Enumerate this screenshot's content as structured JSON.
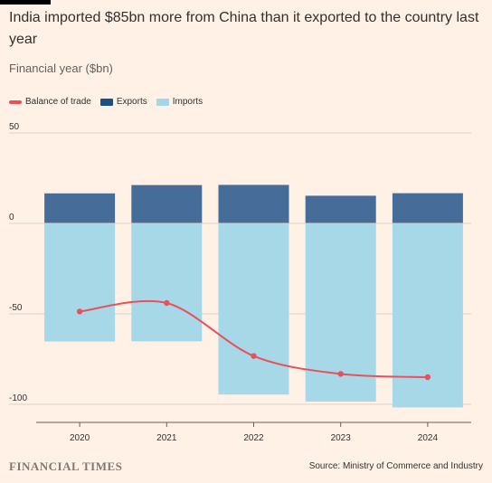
{
  "title": "India imported $85bn more from China than it exported to the country last year",
  "subtitle": "Financial year ($bn)",
  "legend": [
    {
      "label": "Balance of trade",
      "color": "#e8505b",
      "kind": "line"
    },
    {
      "label": "Exports",
      "color": "#1d4f85",
      "kind": "bar"
    },
    {
      "label": "Imports",
      "color": "#a3d6e6",
      "kind": "bar"
    }
  ],
  "footer": {
    "brand": "FINANCIAL TIMES",
    "source": "Source: Ministry of Commerce and Industry"
  },
  "chart_data": {
    "type": "bar",
    "categories": [
      "2020",
      "2021",
      "2022",
      "2023",
      "2024"
    ],
    "series": [
      {
        "name": "Exports",
        "values": [
          16.6,
          21.2,
          21.3,
          15.3,
          16.7
        ],
        "color": "#466d9a"
      },
      {
        "name": "Imports",
        "values": [
          -65.3,
          -65.2,
          -94.6,
          -98.5,
          -101.7
        ],
        "color": "#a6d8e8"
      },
      {
        "name": "Balance of trade",
        "values": [
          -48.7,
          -44.0,
          -73.3,
          -83.2,
          -85.0
        ],
        "color": "#e8505b",
        "kind": "line"
      }
    ],
    "yticks": [
      50,
      0,
      -50,
      -100
    ],
    "ylim": [
      -110,
      50
    ],
    "grid": true,
    "legend_position": "top-left"
  }
}
